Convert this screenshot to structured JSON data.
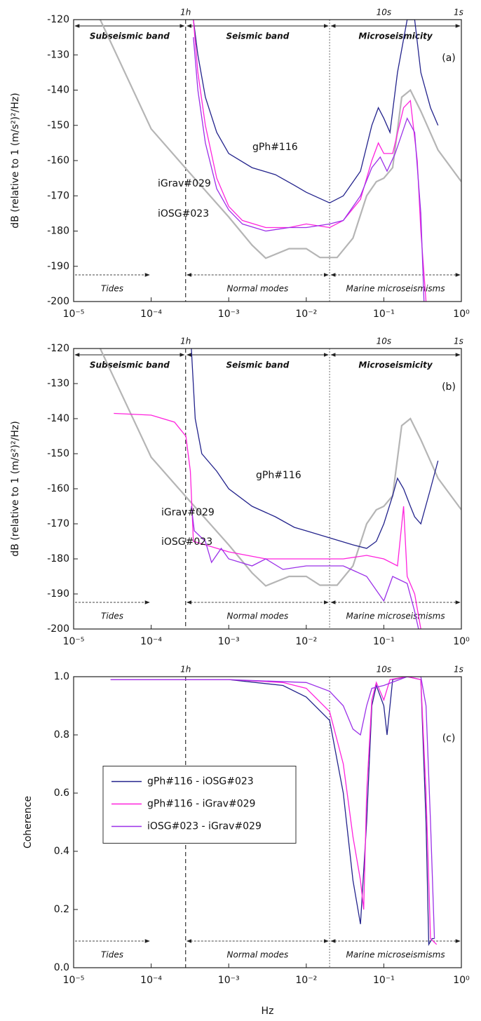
{
  "chart_data": [
    {
      "type": "line",
      "panel_label": "(a)",
      "ylabel": "dB (relative to 1 (m/s²)²/Hz)",
      "log_x": true,
      "xlim": [
        1e-05,
        1
      ],
      "xticks": [
        {
          "value": 1e-05,
          "label": "10⁻⁵"
        },
        {
          "value": 0.0001,
          "label": "10⁻⁴"
        },
        {
          "value": 0.001,
          "label": "10⁻³"
        },
        {
          "value": 0.01,
          "label": "10⁻²"
        },
        {
          "value": 0.1,
          "label": "10⁻¹"
        },
        {
          "value": 1,
          "label": "10⁰"
        }
      ],
      "ylim": [
        -200,
        -120
      ],
      "yticks": [
        -200,
        -190,
        -180,
        -170,
        -160,
        -150,
        -140,
        -130,
        -120
      ],
      "vlines": [
        {
          "value": 0.000278,
          "style": "dashed"
        },
        {
          "value": 0.02,
          "style": "dotted"
        }
      ],
      "period_labels": [
        {
          "value": 0.000278,
          "label": "1h"
        },
        {
          "value": 0.1,
          "label": "10s"
        },
        {
          "value": 1,
          "label": "1s"
        }
      ],
      "band_labels": [
        "Subseismic band",
        "Seismic band",
        "Microseismicity"
      ],
      "range_labels": [
        "Tides",
        "Normal modes",
        "Marine microseismisms"
      ],
      "series_labels": true,
      "series": [
        {
          "color": "#b5b5b5",
          "x": [
            2.2e-05,
            0.0001,
            0.0003,
            0.001,
            0.002,
            0.003,
            0.006,
            0.01,
            0.015,
            0.025,
            0.04,
            0.06,
            0.08,
            0.1,
            0.13,
            0.17,
            0.22,
            0.3,
            0.5,
            1
          ],
          "values": [
            -120,
            -151,
            -163,
            -176,
            -184,
            -187.7,
            -185,
            -185,
            -187.5,
            -187.5,
            -182,
            -170,
            -166,
            -165,
            -162,
            -142,
            -140,
            -146,
            -157,
            -166
          ]
        },
        {
          "name": "gPh#116",
          "color": "#23238c",
          "x": [
            0.00035,
            0.0004,
            0.0005,
            0.0007,
            0.001,
            0.002,
            0.004,
            0.007,
            0.01,
            0.02,
            0.03,
            0.05,
            0.07,
            0.085,
            0.1,
            0.12,
            0.15,
            0.2,
            0.25,
            0.3,
            0.4,
            0.5
          ],
          "values": [
            -120,
            -130,
            -142,
            -152,
            -158,
            -162,
            -164,
            -167,
            -169,
            -172,
            -170,
            -163,
            -150,
            -145,
            -148,
            -152,
            -135,
            -120,
            -120,
            -135,
            -145,
            -150
          ]
        },
        {
          "name": "iGrav#029",
          "color": "#ff22dd",
          "x": [
            0.00035,
            0.0004,
            0.0005,
            0.0007,
            0.001,
            0.0015,
            0.003,
            0.006,
            0.01,
            0.02,
            0.03,
            0.05,
            0.07,
            0.085,
            0.1,
            0.13,
            0.18,
            0.22,
            0.27,
            0.3,
            0.35
          ],
          "values": [
            -120,
            -135,
            -150,
            -165,
            -173,
            -177,
            -179,
            -179,
            -178,
            -179,
            -177,
            -171,
            -160,
            -155,
            -158,
            -158,
            -145,
            -143,
            -160,
            -180,
            -200
          ]
        },
        {
          "name": "iOSG#023",
          "color": "#9b30e8",
          "x": [
            0.00035,
            0.0004,
            0.0005,
            0.0007,
            0.001,
            0.0015,
            0.003,
            0.006,
            0.01,
            0.02,
            0.03,
            0.05,
            0.07,
            0.09,
            0.11,
            0.14,
            0.2,
            0.25,
            0.3,
            0.33
          ],
          "values": [
            -125,
            -140,
            -155,
            -168,
            -174,
            -178,
            -180,
            -179,
            -179,
            -178,
            -177,
            -170,
            -162,
            -159,
            -163,
            -158,
            -148,
            -152,
            -175,
            -200
          ]
        }
      ]
    },
    {
      "type": "line",
      "panel_label": "(b)",
      "ylabel": "dB (relative to 1 (m/s²)²/Hz)",
      "log_x": true,
      "xlim": [
        1e-05,
        1
      ],
      "xticks": [
        {
          "value": 1e-05,
          "label": "10⁻⁵"
        },
        {
          "value": 0.0001,
          "label": "10⁻⁴"
        },
        {
          "value": 0.001,
          "label": "10⁻³"
        },
        {
          "value": 0.01,
          "label": "10⁻²"
        },
        {
          "value": 0.1,
          "label": "10⁻¹"
        },
        {
          "value": 1,
          "label": "10⁰"
        }
      ],
      "ylim": [
        -200,
        -120
      ],
      "yticks": [
        -200,
        -190,
        -180,
        -170,
        -160,
        -150,
        -140,
        -130,
        -120
      ],
      "vlines": [
        {
          "value": 0.000278,
          "style": "dashed"
        },
        {
          "value": 0.02,
          "style": "dotted"
        }
      ],
      "period_labels": [
        {
          "value": 0.000278,
          "label": "1h"
        },
        {
          "value": 0.1,
          "label": "10s"
        },
        {
          "value": 1,
          "label": "1s"
        }
      ],
      "band_labels": [
        "Subseismic band",
        "Seismic band",
        "Microseismicity"
      ],
      "range_labels": [
        "Tides",
        "Normal modes",
        "Marine microseismisms"
      ],
      "series_labels": true,
      "series": [
        {
          "color": "#b5b5b5",
          "x": [
            2.2e-05,
            0.0001,
            0.0003,
            0.001,
            0.002,
            0.003,
            0.006,
            0.01,
            0.015,
            0.025,
            0.04,
            0.06,
            0.08,
            0.1,
            0.13,
            0.17,
            0.22,
            0.3,
            0.5,
            1
          ],
          "values": [
            -120,
            -151,
            -163,
            -176,
            -184,
            -187.7,
            -185,
            -185,
            -187.5,
            -187.5,
            -182,
            -170,
            -166,
            -165,
            -162,
            -142,
            -140,
            -146,
            -157,
            -166
          ]
        },
        {
          "name": "gPh#116",
          "color": "#23238c",
          "x": [
            0.00033,
            0.00037,
            0.00045,
            0.0007,
            0.001,
            0.002,
            0.004,
            0.007,
            0.01,
            0.02,
            0.04,
            0.06,
            0.08,
            0.1,
            0.13,
            0.15,
            0.18,
            0.22,
            0.25,
            0.3,
            0.4,
            0.5
          ],
          "values": [
            -120,
            -140,
            -150,
            -155,
            -160,
            -165,
            -168,
            -171,
            -172,
            -174,
            -176,
            -177,
            -175,
            -170,
            -162,
            -157,
            -160,
            -165,
            -168,
            -170,
            -160,
            -152
          ]
        },
        {
          "name": "iGrav#029",
          "color": "#ff22dd",
          "x": [
            3.3e-05,
            0.0001,
            0.0002,
            0.00028,
            0.00032,
            0.00035,
            0.0005,
            0.001,
            0.003,
            0.01,
            0.03,
            0.06,
            0.1,
            0.15,
            0.18,
            0.2,
            0.25,
            0.3
          ],
          "values": [
            -138.5,
            -139,
            -141,
            -145,
            -155,
            -175,
            -176,
            -178,
            -180,
            -180,
            -180,
            -179,
            -180,
            -182,
            -165,
            -185,
            -190,
            -200
          ]
        },
        {
          "name": "iOSG#023",
          "color": "#9b30e8",
          "x": [
            0.00033,
            0.00036,
            0.0005,
            0.0006,
            0.0008,
            0.001,
            0.002,
            0.003,
            0.005,
            0.01,
            0.03,
            0.06,
            0.1,
            0.13,
            0.2,
            0.25,
            0.28
          ],
          "values": [
            -165,
            -172,
            -175,
            -181,
            -177,
            -180,
            -182,
            -180,
            -183,
            -182,
            -182,
            -185,
            -192,
            -185,
            -187,
            -195,
            -200
          ]
        }
      ]
    },
    {
      "type": "line",
      "panel_label": "(c)",
      "ylabel": "Coherence",
      "xlabel": "Hz",
      "log_x": true,
      "xlim": [
        1e-05,
        1
      ],
      "xticks": [
        {
          "value": 1e-05,
          "label": "10⁻⁵"
        },
        {
          "value": 0.0001,
          "label": "10⁻⁴"
        },
        {
          "value": 0.001,
          "label": "10⁻³"
        },
        {
          "value": 0.01,
          "label": "10⁻²"
        },
        {
          "value": 0.1,
          "label": "10⁻¹"
        },
        {
          "value": 1,
          "label": "10⁰"
        }
      ],
      "ylim": [
        0,
        1
      ],
      "yticks": [
        {
          "value": 0,
          "label": "0.0"
        },
        {
          "value": 0.2,
          "label": "0.2"
        },
        {
          "value": 0.4,
          "label": "0.4"
        },
        {
          "value": 0.6,
          "label": "0.6"
        },
        {
          "value": 0.8,
          "label": "0.8"
        },
        {
          "value": 1,
          "label": "1.0"
        }
      ],
      "vlines": [
        {
          "value": 0.000278,
          "style": "dashed"
        },
        {
          "value": 0.02,
          "style": "dotted"
        }
      ],
      "period_labels": [
        {
          "value": 0.000278,
          "label": "1h"
        },
        {
          "value": 0.1,
          "label": "10s"
        },
        {
          "value": 1,
          "label": "1s"
        }
      ],
      "range_labels": [
        "Tides",
        "Normal modes",
        "Marine microseismisms"
      ],
      "legend": "center left",
      "series": [
        {
          "name": "gPh#116 - iOSG#023",
          "color": "#23238c",
          "x": [
            3e-05,
            0.001,
            0.005,
            0.01,
            0.02,
            0.03,
            0.04,
            0.05,
            0.06,
            0.07,
            0.08,
            0.1,
            0.11,
            0.13,
            0.2,
            0.3,
            0.35,
            0.38,
            0.42,
            0.45
          ],
          "values": [
            0.99,
            0.99,
            0.97,
            0.93,
            0.85,
            0.6,
            0.3,
            0.15,
            0.5,
            0.9,
            0.97,
            0.9,
            0.8,
            0.99,
            1.0,
            0.99,
            0.5,
            0.08,
            0.1,
            0.1
          ]
        },
        {
          "name": "gPh#116 - iGrav#029",
          "color": "#ff22dd",
          "x": [
            3e-05,
            0.001,
            0.005,
            0.01,
            0.02,
            0.03,
            0.04,
            0.05,
            0.055,
            0.06,
            0.07,
            0.08,
            0.1,
            0.12,
            0.2,
            0.3,
            0.35,
            0.4,
            0.48
          ],
          "values": [
            0.99,
            0.99,
            0.98,
            0.96,
            0.88,
            0.7,
            0.45,
            0.3,
            0.2,
            0.6,
            0.92,
            0.98,
            0.92,
            0.99,
            1.0,
            0.99,
            0.6,
            0.1,
            0.08
          ]
        },
        {
          "name": "iOSG#023 - iGrav#029",
          "color": "#9b30e8",
          "x": [
            3e-05,
            0.001,
            0.01,
            0.02,
            0.03,
            0.04,
            0.05,
            0.06,
            0.07,
            0.1,
            0.2,
            0.3,
            0.35,
            0.4,
            0.45
          ],
          "values": [
            0.99,
            0.99,
            0.98,
            0.95,
            0.9,
            0.82,
            0.8,
            0.9,
            0.96,
            0.97,
            1.0,
            1.0,
            0.9,
            0.5,
            0.1
          ]
        }
      ]
    }
  ]
}
